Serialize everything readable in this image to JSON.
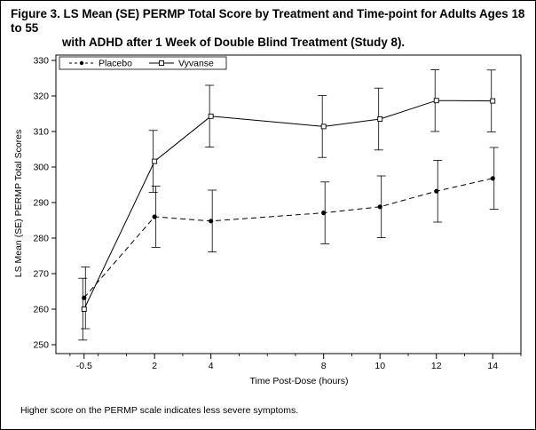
{
  "title_line1": "Figure 3. LS Mean (SE) PERMP Total Score by Treatment and Time-point for Adults Ages 18 to 55",
  "title_line2": "with ADHD after 1 Week of Double Blind Treatment (Study 8).",
  "footnote": "Higher score on the PERMP scale indicates less severe symptoms.",
  "chart_data": {
    "type": "line",
    "xlabel": "Time Post-Dose (hours)",
    "ylabel": "LS Mean (SE) PERMP Total Scores",
    "x": [
      -0.5,
      2,
      4,
      8,
      10,
      12,
      14
    ],
    "x_tick_labels": [
      "-0.5",
      "2",
      "4",
      "8",
      "10",
      "12",
      "14"
    ],
    "xlim": [
      -1.5,
      15
    ],
    "ylim": [
      247.5,
      331.5
    ],
    "y_ticks": [
      250,
      260,
      270,
      280,
      290,
      300,
      310,
      320,
      330
    ],
    "legend_position": "top-left",
    "grid": false,
    "series": [
      {
        "name": "Placebo",
        "style": "dashed",
        "marker": "filled-circle",
        "values": [
          263.2,
          286.0,
          284.8,
          287.1,
          288.8,
          293.2,
          296.8
        ],
        "lower": [
          254.5,
          277.4,
          276.1,
          278.4,
          280.1,
          284.5,
          288.1
        ],
        "upper": [
          271.9,
          294.6,
          293.5,
          295.8,
          297.5,
          301.9,
          305.5
        ]
      },
      {
        "name": "Vyvanse",
        "style": "solid",
        "marker": "open-square",
        "values": [
          260.0,
          301.6,
          314.3,
          311.4,
          313.5,
          318.7,
          318.6
        ],
        "lower": [
          251.3,
          292.9,
          305.6,
          302.7,
          304.8,
          310.0,
          309.9
        ],
        "upper": [
          268.7,
          310.3,
          323.0,
          320.1,
          322.2,
          327.4,
          327.3
        ]
      }
    ]
  }
}
